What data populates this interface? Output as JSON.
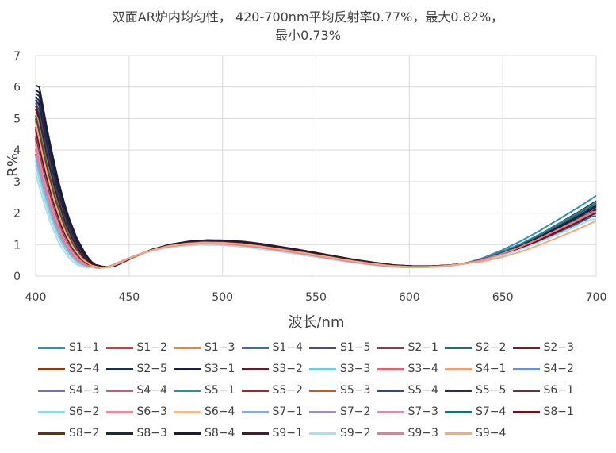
{
  "chart_data": {
    "type": "line",
    "title_lines": [
      "双面AR炉内均匀性， 420-700nm平均反射率0.77%，最大0.82%，",
      "最小0.73%"
    ],
    "xlabel": "波长/nm",
    "ylabel": "R%",
    "xlim": [
      400,
      700
    ],
    "ylim": [
      0,
      7
    ],
    "xticks": [
      400,
      450,
      500,
      550,
      600,
      650,
      700
    ],
    "yticks": [
      0,
      1,
      2,
      3,
      4,
      5,
      6,
      7
    ],
    "grid": true,
    "legend_position": "bottom",
    "base_curve": {
      "x": [
        400,
        405,
        410,
        415,
        420,
        425,
        430,
        435,
        440,
        445,
        450,
        460,
        470,
        480,
        490,
        500,
        510,
        520,
        530,
        540,
        550,
        560,
        570,
        580,
        590,
        600,
        610,
        620,
        630,
        640,
        650,
        660,
        670,
        680,
        690,
        700
      ],
      "y": [
        5.0,
        3.6,
        2.45,
        1.55,
        0.95,
        0.55,
        0.34,
        0.27,
        0.3,
        0.42,
        0.56,
        0.79,
        0.95,
        1.04,
        1.08,
        1.07,
        1.03,
        0.96,
        0.87,
        0.78,
        0.68,
        0.58,
        0.48,
        0.4,
        0.33,
        0.3,
        0.3,
        0.33,
        0.4,
        0.53,
        0.72,
        0.95,
        1.22,
        1.52,
        1.82,
        2.15
      ]
    },
    "series": [
      {
        "name": "S1−1",
        "color": "#2E8FBF",
        "y400": 5.0,
        "y700": 2.55,
        "shift": 0.0,
        "scale": 1.0
      },
      {
        "name": "S1−2",
        "color": "#D63A3A",
        "y400": 4.6,
        "y700": 2.1,
        "shift": -1.0,
        "scale": 0.96
      },
      {
        "name": "S1−3",
        "color": "#E8853E",
        "y400": 5.3,
        "y700": 2.35,
        "shift": 0.8,
        "scale": 1.02
      },
      {
        "name": "S1−4",
        "color": "#3E6FA8",
        "y400": 4.3,
        "y700": 1.9,
        "shift": -1.8,
        "scale": 0.94
      },
      {
        "name": "S1−5",
        "color": "#4E4A8C",
        "y400": 5.6,
        "y700": 2.2,
        "shift": 1.4,
        "scale": 1.04
      },
      {
        "name": "S2−1",
        "color": "#8C3A4E",
        "y400": 4.7,
        "y700": 2.25,
        "shift": -0.4,
        "scale": 0.98
      },
      {
        "name": "S2−2",
        "color": "#1E6E7E",
        "y400": 5.2,
        "y700": 2.3,
        "shift": 0.5,
        "scale": 1.0
      },
      {
        "name": "S2−3",
        "color": "#7A1C24",
        "y400": 4.9,
        "y700": 2.05,
        "shift": -0.7,
        "scale": 0.97
      },
      {
        "name": "S2−4",
        "color": "#8A3E10",
        "y400": 5.1,
        "y700": 2.15,
        "shift": 0.2,
        "scale": 1.01
      },
      {
        "name": "S2−5",
        "color": "#1E2E4E",
        "y400": 5.8,
        "y700": 2.4,
        "shift": 1.8,
        "scale": 1.05
      },
      {
        "name": "S3−1",
        "color": "#1E1E3E",
        "y400": 6.05,
        "y700": 2.45,
        "shift": 2.0,
        "scale": 1.06
      },
      {
        "name": "S3−2",
        "color": "#5E1E2E",
        "y400": 5.4,
        "y700": 2.3,
        "shift": 1.0,
        "scale": 1.03
      },
      {
        "name": "S3−3",
        "color": "#6ECCE0",
        "y400": 4.2,
        "y700": 2.0,
        "shift": -2.0,
        "scale": 0.93
      },
      {
        "name": "S3−4",
        "color": "#E86070",
        "y400": 4.5,
        "y700": 2.2,
        "shift": -1.2,
        "scale": 0.95
      },
      {
        "name": "S4−1",
        "color": "#F0A070",
        "y400": 5.2,
        "y700": 2.25,
        "shift": 0.6,
        "scale": 1.0
      },
      {
        "name": "S4−2",
        "color": "#6A8ED8",
        "y400": 4.4,
        "y700": 2.1,
        "shift": -1.5,
        "scale": 0.95
      },
      {
        "name": "S4−3",
        "color": "#7A6AB8",
        "y400": 4.8,
        "y700": 2.25,
        "shift": -0.2,
        "scale": 0.99
      },
      {
        "name": "S4−4",
        "color": "#C0607A",
        "y400": 4.6,
        "y700": 2.3,
        "shift": -0.6,
        "scale": 0.98
      },
      {
        "name": "S5−1",
        "color": "#2E8EA0",
        "y400": 4.9,
        "y700": 2.35,
        "shift": 0.1,
        "scale": 1.0
      },
      {
        "name": "S5−2",
        "color": "#B0202A",
        "y400": 4.3,
        "y700": 2.15,
        "shift": -1.6,
        "scale": 0.95
      },
      {
        "name": "S5−3",
        "color": "#C85A1E",
        "y400": 5.0,
        "y700": 2.2,
        "shift": 0.3,
        "scale": 1.0
      },
      {
        "name": "S5−4",
        "color": "#2E4E7E",
        "y400": 5.5,
        "y700": 2.3,
        "shift": 1.2,
        "scale": 1.03
      },
      {
        "name": "S5−5",
        "color": "#2E2E50",
        "y400": 5.7,
        "y700": 2.35,
        "shift": 1.6,
        "scale": 1.04
      },
      {
        "name": "S6−1",
        "color": "#6E2E3E",
        "y400": 4.6,
        "y700": 2.1,
        "shift": -0.8,
        "scale": 0.97
      },
      {
        "name": "S6−2",
        "color": "#90D8E8",
        "y400": 4.1,
        "y700": 1.95,
        "shift": -2.2,
        "scale": 0.92
      },
      {
        "name": "S6−3",
        "color": "#F08898",
        "y400": 4.4,
        "y700": 2.2,
        "shift": -1.3,
        "scale": 0.96
      },
      {
        "name": "S6−4",
        "color": "#F8B890",
        "y400": 5.0,
        "y700": 2.25,
        "shift": 0.2,
        "scale": 1.0
      },
      {
        "name": "S7−1",
        "color": "#8AA8E0",
        "y400": 4.3,
        "y700": 2.05,
        "shift": -1.7,
        "scale": 0.95
      },
      {
        "name": "S7−2",
        "color": "#9A90C8",
        "y400": 4.7,
        "y700": 2.15,
        "shift": -0.3,
        "scale": 0.99
      },
      {
        "name": "S7−3",
        "color": "#D890A8",
        "y400": 4.5,
        "y700": 2.2,
        "shift": -0.9,
        "scale": 0.97
      },
      {
        "name": "S7−4",
        "color": "#1E6E6E",
        "y400": 5.1,
        "y700": 2.3,
        "shift": 0.4,
        "scale": 1.01
      },
      {
        "name": "S8−1",
        "color": "#6E1018",
        "y400": 4.8,
        "y700": 2.0,
        "shift": -0.5,
        "scale": 0.98
      },
      {
        "name": "S8−2",
        "color": "#6E2E08",
        "y400": 5.0,
        "y700": 2.1,
        "shift": 0.0,
        "scale": 1.0
      },
      {
        "name": "S8−3",
        "color": "#1A2A40",
        "y400": 5.6,
        "y700": 2.25,
        "shift": 1.5,
        "scale": 1.04
      },
      {
        "name": "S8−4",
        "color": "#1A1A36",
        "y400": 5.9,
        "y700": 2.3,
        "shift": 1.9,
        "scale": 1.05
      },
      {
        "name": "S9−1",
        "color": "#4E1A28",
        "y400": 5.3,
        "y700": 2.15,
        "shift": 0.9,
        "scale": 1.02
      },
      {
        "name": "S9−2",
        "color": "#A8E0EC",
        "y400": 3.9,
        "y700": 1.8,
        "shift": -2.4,
        "scale": 0.92
      },
      {
        "name": "S9−3",
        "color": "#F07888",
        "y400": 4.4,
        "y700": 2.05,
        "shift": -1.4,
        "scale": 0.96
      },
      {
        "name": "S9−4",
        "color": "#F8A878",
        "y400": 4.9,
        "y700": 1.75,
        "shift": -0.1,
        "scale": 0.99
      }
    ]
  },
  "colors": {
    "grid": "#D9D9D9",
    "axis_text": "#404040"
  }
}
